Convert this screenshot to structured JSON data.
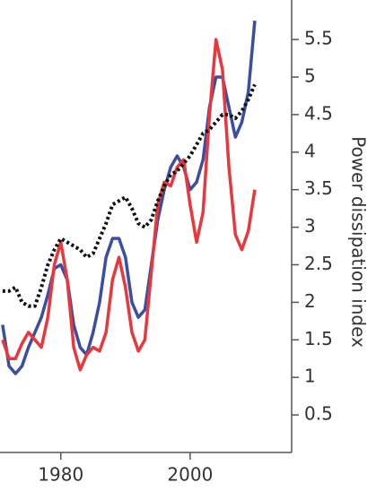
{
  "chart_data": {
    "type": "line",
    "y_label": "Power dissipation index",
    "x": [
      1971,
      1972,
      1973,
      1974,
      1975,
      1976,
      1977,
      1978,
      1979,
      1980,
      1981,
      1982,
      1983,
      1984,
      1985,
      1986,
      1987,
      1988,
      1989,
      1990,
      1991,
      1992,
      1993,
      1994,
      1995,
      1996,
      1997,
      1998,
      1999,
      2000,
      2001,
      2002,
      2003,
      2004,
      2005,
      2006,
      2007,
      2008,
      2009,
      2010
    ],
    "series": [
      {
        "color": "#3b4ea0",
        "style": "solid",
        "values": [
          1.7,
          1.15,
          1.05,
          1.15,
          1.4,
          1.6,
          1.8,
          2.1,
          2.45,
          2.5,
          2.3,
          1.7,
          1.4,
          1.3,
          1.6,
          2.0,
          2.6,
          2.85,
          2.85,
          2.6,
          2.0,
          1.8,
          1.9,
          2.5,
          3.1,
          3.5,
          3.8,
          3.95,
          3.8,
          3.5,
          3.6,
          3.9,
          4.6,
          5.0,
          5.0,
          4.6,
          4.2,
          4.4,
          4.8,
          5.75
        ]
      },
      {
        "color": "#e8383d",
        "style": "solid",
        "values": [
          1.5,
          1.25,
          1.25,
          1.45,
          1.6,
          1.5,
          1.4,
          1.8,
          2.5,
          2.8,
          2.3,
          1.4,
          1.1,
          1.3,
          1.4,
          1.35,
          1.6,
          2.3,
          2.6,
          2.2,
          1.6,
          1.35,
          1.5,
          2.4,
          3.3,
          3.6,
          3.55,
          3.8,
          3.9,
          3.3,
          2.8,
          3.2,
          4.5,
          5.5,
          5.1,
          3.8,
          2.9,
          2.7,
          2.95,
          3.5
        ]
      },
      {
        "color": "#111111",
        "style": "dotted",
        "values": [
          2.15,
          2.15,
          2.2,
          2.0,
          1.95,
          1.95,
          2.2,
          2.5,
          2.7,
          2.85,
          2.8,
          2.75,
          2.7,
          2.6,
          2.65,
          2.85,
          3.05,
          3.3,
          3.35,
          3.4,
          3.25,
          3.05,
          3.0,
          3.1,
          3.35,
          3.55,
          3.7,
          3.75,
          3.85,
          3.95,
          4.1,
          4.25,
          4.3,
          4.4,
          4.5,
          4.5,
          4.45,
          4.55,
          4.7,
          4.9
        ]
      }
    ],
    "xlim": [
      1970.6,
      2015.7
    ],
    "xticks": [
      1980,
      2000
    ],
    "ylim": [
      0,
      6
    ],
    "yticks": [
      0.5,
      1.0,
      1.5,
      2.0,
      2.5,
      3.0,
      3.5,
      4.0,
      4.5,
      5.0,
      5.5
    ],
    "y_axis_side": "right"
  }
}
